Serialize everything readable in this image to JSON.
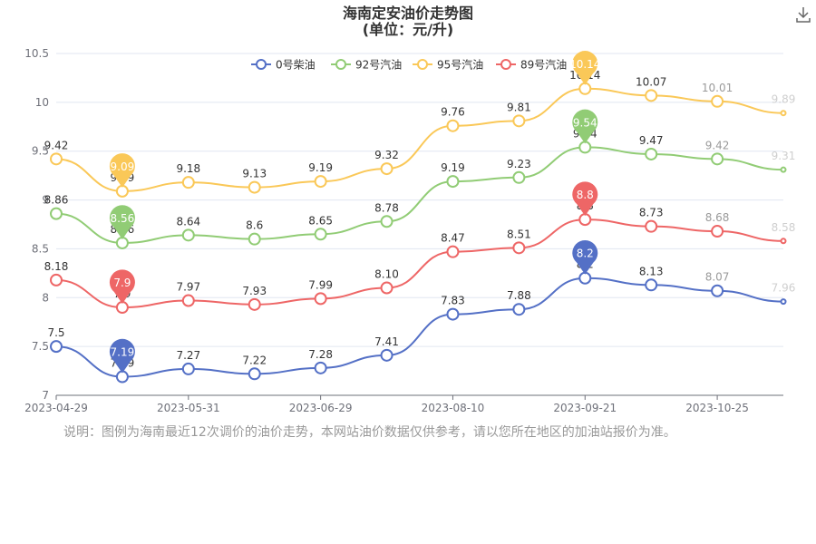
{
  "chart_data": {
    "type": "line",
    "title": "海南定安油价走势图",
    "subtitle": "(单位：元/升)",
    "x": [
      "2023-04-29",
      "2023-05-15",
      "2023-05-31",
      "2023-06-14",
      "2023-06-29",
      "2023-07-14",
      "2023-08-10",
      "2023-08-24",
      "2023-09-21",
      "2023-10-09",
      "2023-10-25",
      "2023-11-08"
    ],
    "x_tick_labels": [
      "2023-04-29",
      "2023-05-31",
      "2023-06-29",
      "2023-08-10",
      "2023-09-21",
      "2023-10-25"
    ],
    "y_tick_labels": [
      "7",
      "7.5",
      "8",
      "8.5",
      "9",
      "9.5",
      "10",
      "10.5"
    ],
    "ylim": [
      7,
      10.5
    ],
    "grid": true,
    "legend_position": "top",
    "series": [
      {
        "name": "0号柴油",
        "color": "#5470c6",
        "min_label": "7.19",
        "max_label": "8.2",
        "values": [
          7.5,
          7.19,
          7.27,
          7.22,
          7.28,
          7.41,
          7.83,
          7.88,
          8.2,
          8.13,
          8.07,
          7.96
        ]
      },
      {
        "name": "92号汽油",
        "color": "#91cc75",
        "min_label": "8.56",
        "max_label": "9.54",
        "values": [
          8.86,
          8.56,
          8.64,
          8.6,
          8.65,
          8.78,
          9.19,
          9.23,
          9.54,
          9.47,
          9.42,
          9.31
        ]
      },
      {
        "name": "95号汽油",
        "color": "#fac858",
        "min_label": "9.09",
        "max_label": "10.14",
        "values": [
          9.42,
          9.09,
          9.18,
          9.13,
          9.19,
          9.32,
          9.76,
          9.81,
          10.14,
          10.07,
          10.01,
          9.89
        ]
      },
      {
        "name": "89号汽油",
        "color": "#ee6666",
        "min_label": "7.9",
        "max_label": "8.8",
        "values": [
          8.18,
          7.9,
          7.97,
          7.93,
          7.99,
          8.1,
          8.47,
          8.51,
          8.8,
          8.73,
          8.68,
          8.58
        ]
      }
    ],
    "data_labels": [
      [
        "7.5",
        "7.19",
        "7.27",
        "7.22",
        "7.28",
        "7.41",
        "7.83",
        "7.88",
        "8.2",
        "8.13",
        "8.07",
        "7.96"
      ],
      [
        "8.86",
        "8.56",
        "8.64",
        "8.6",
        "8.65",
        "8.78",
        "9.19",
        "9.23",
        "9.54",
        "9.47",
        "9.42",
        "9.31"
      ],
      [
        "9.42",
        "9.09",
        "9.18",
        "9.13",
        "9.19",
        "9.32",
        "9.76",
        "9.81",
        "10.14",
        "10.07",
        "10.01",
        "9.89"
      ],
      [
        "8.18",
        "7.9",
        "7.97",
        "7.93",
        "7.99",
        "8.10",
        "8.47",
        "8.51",
        "8.8",
        "8.73",
        "8.68",
        "8.58"
      ]
    ]
  },
  "note": "说明：图例为海南最近12次调价的油价走势，本网站油价数据仅供参考，请以您所在地区的加油站报价为准。",
  "icons": {
    "download": "download-icon"
  }
}
